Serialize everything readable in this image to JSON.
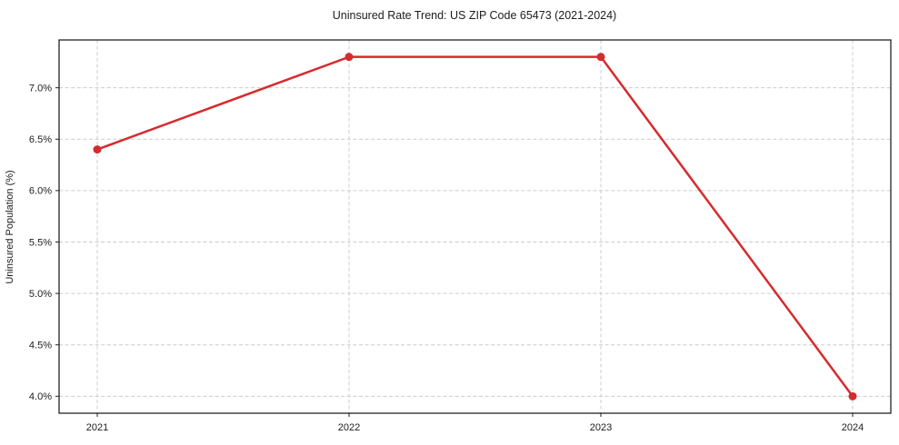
{
  "chart_data": {
    "type": "line",
    "title": "Uninsured Rate Trend: US ZIP Code 65473 (2021-2024)",
    "xlabel": "",
    "ylabel": "Uninsured Population (%)",
    "categories": [
      "2021",
      "2022",
      "2023",
      "2024"
    ],
    "values": [
      6.4,
      7.3,
      7.3,
      4.0
    ],
    "y_ticks": [
      4.0,
      4.5,
      5.0,
      5.5,
      6.0,
      6.5,
      7.0
    ],
    "y_tick_labels": [
      "4.0%",
      "4.5%",
      "5.0%",
      "5.5%",
      "6.0%",
      "6.5%",
      "7.0%"
    ],
    "ylim": [
      3.835,
      7.465
    ],
    "grid": "dashed",
    "legend": "none",
    "line_color": "#d62b2e",
    "marker": "circle",
    "marker_radius": 4.5
  }
}
